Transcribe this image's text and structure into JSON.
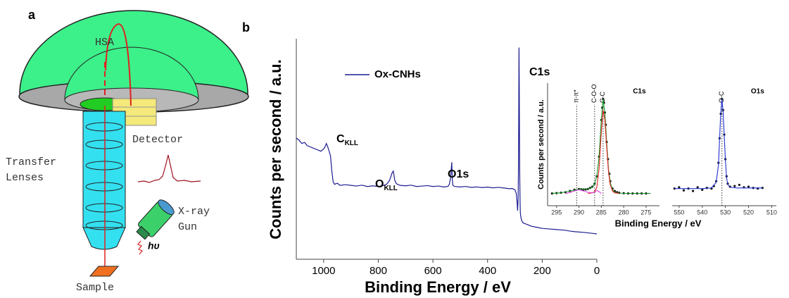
{
  "panel_labels": [
    "a",
    "b"
  ],
  "diagram": {
    "labels": {
      "hsa": "HSA",
      "detector": "Detector",
      "transfer_lenses": [
        "Transfer",
        "Lenses"
      ],
      "xray_gun": [
        "X-ray",
        "Gun"
      ],
      "photon": "hυ",
      "sample": "Sample"
    }
  },
  "chart_data": [
    {
      "type": "line",
      "xlabel": "Binding Energy / eV",
      "ylabel": "Counts per second / a.u.",
      "x": [
        1100,
        1090,
        1080,
        1070,
        1060,
        1050,
        1040,
        1030,
        1020,
        1010,
        1000,
        995,
        990,
        985,
        980,
        975,
        970,
        965,
        960,
        950,
        940,
        920,
        900,
        880,
        860,
        840,
        820,
        800,
        780,
        770,
        760,
        755,
        750,
        745,
        740,
        735,
        730,
        720,
        700,
        680,
        660,
        640,
        620,
        600,
        580,
        560,
        545,
        540,
        535,
        533,
        531,
        529,
        527,
        520,
        500,
        480,
        460,
        440,
        420,
        400,
        380,
        360,
        340,
        320,
        310,
        300,
        295,
        292,
        290,
        288,
        287,
        286,
        285,
        284,
        283,
        282,
        281,
        280,
        278,
        275,
        270,
        260,
        250,
        240,
        220,
        200,
        180,
        150,
        120,
        100,
        80,
        50,
        20,
        0
      ],
      "series": [
        {
          "name": "Ox-CNHs",
          "color": "#1c1c92",
          "values": [
            55,
            54,
            52.5,
            53,
            51.5,
            51,
            50.5,
            50,
            49.5,
            49,
            50,
            51,
            52.5,
            51,
            49,
            47,
            40,
            35,
            34,
            34.5,
            33.5,
            33.8,
            33.5,
            33.2,
            33.6,
            33,
            33.3,
            33,
            33.5,
            34,
            35.5,
            37,
            39,
            40,
            36,
            34.5,
            34,
            33.5,
            33.3,
            33.6,
            33,
            33.2,
            33.4,
            33,
            33.2,
            32.8,
            33,
            34,
            37,
            41,
            44,
            36,
            33.5,
            33,
            32.8,
            33,
            32.6,
            32.8,
            32.5,
            32.7,
            32.4,
            32.6,
            32.3,
            32,
            32.1,
            31.5,
            30,
            26,
            22,
            28,
            40,
            62,
            96,
            78,
            52,
            35,
            26,
            21,
            19,
            17.5,
            16.5,
            16,
            15.5,
            15,
            14.5,
            14,
            13.8,
            13.5,
            13.2,
            12.8,
            12.5,
            12.2,
            11.8,
            11.5
          ]
        }
      ],
      "xlim": [
        1100,
        0
      ],
      "ylim": [
        0,
        100
      ],
      "xticks": [
        1000,
        800,
        600,
        400,
        200,
        0
      ],
      "legend": "upper left",
      "annotations": [
        {
          "text": "C1s"
        },
        {
          "text": "C",
          "subscript": "KLL"
        },
        {
          "text": "O",
          "subscript": "KLL"
        },
        {
          "text": "O1s"
        }
      ]
    },
    {
      "type": "line",
      "title": "C1s",
      "xlabel": "Binding Energy / eV",
      "ylabel": "Counts per second / a.u.",
      "xlim": [
        297,
        272
      ],
      "ylim": [
        0,
        100
      ],
      "xticks": [
        295,
        290,
        285,
        280,
        275
      ],
      "reference_lines": [
        {
          "x": 290.5,
          "label": "π-π*"
        },
        {
          "x": 286.5,
          "label": "C-O-O"
        },
        {
          "x": 284.6,
          "label": "C-C"
        }
      ],
      "series": [
        {
          "color": "#111111",
          "marker": "dot",
          "x": [
            296,
            295,
            294,
            293,
            292,
            291,
            290,
            289.5,
            289,
            288.5,
            288,
            287.5,
            287,
            286.5,
            286,
            285.5,
            285,
            284.8,
            284.6,
            284.4,
            284.2,
            284,
            283.8,
            283.5,
            283.2,
            283,
            282.5,
            282,
            281.5,
            281,
            280,
            279,
            278,
            277,
            276,
            275
          ],
          "values": [
            10,
            10.3,
            10.6,
            11,
            12,
            13,
            13.6,
            13.4,
            13.2,
            13.3,
            13.6,
            14.5,
            15.5,
            18,
            24,
            40,
            70,
            80,
            87,
            84,
            76,
            66,
            52,
            38,
            26,
            20,
            14,
            12,
            11,
            10.5,
            10.2,
            10,
            10,
            10,
            10,
            10
          ]
        },
        {
          "color": "#1a9a2a",
          "x": [
            296,
            294,
            292,
            290,
            288,
            287,
            286.5,
            286,
            285.5,
            285,
            284.6,
            284.2,
            283.8,
            283.4,
            283,
            282.5,
            282,
            281,
            279,
            276,
            274
          ],
          "values": [
            10,
            10.5,
            12,
            13.5,
            13.5,
            15,
            18,
            24,
            40,
            70,
            87,
            76,
            52,
            30,
            19,
            13,
            11,
            10.2,
            10,
            10,
            10
          ]
        },
        {
          "color": "#e02020",
          "x": [
            288,
            287,
            286.5,
            286,
            285.5,
            285,
            284.6,
            284.2,
            283.8,
            283.4,
            283,
            282.5,
            282,
            281
          ],
          "values": [
            10,
            10.5,
            11.5,
            15,
            30,
            60,
            78,
            70,
            48,
            28,
            17,
            12,
            10.5,
            10
          ]
        },
        {
          "color": "#e040e0",
          "x": [
            293,
            292,
            291,
            290.5,
            290,
            289.5,
            289,
            288,
            287,
            286.5,
            286,
            285.5,
            285
          ],
          "values": [
            10,
            10.8,
            12,
            12.6,
            13,
            12.6,
            12,
            11,
            10.5,
            11,
            12.5,
            11.5,
            10
          ]
        }
      ]
    },
    {
      "type": "line",
      "title": "O1s",
      "xlim": [
        553,
        508
      ],
      "ylim": [
        0,
        100
      ],
      "xticks": [
        550,
        540,
        530,
        520,
        510
      ],
      "reference_lines": [
        {
          "x": 531.5,
          "label": "O-C"
        }
      ],
      "series": [
        {
          "color": "#111111",
          "marker": "dot",
          "x": [
            552,
            550,
            548,
            546,
            544,
            542,
            540,
            538,
            536,
            535,
            534,
            533,
            532.5,
            532,
            531.5,
            531,
            530.5,
            530,
            529.5,
            529,
            528,
            526,
            524,
            522,
            520,
            518,
            516,
            514
          ],
          "values": [
            14,
            15,
            12.5,
            14,
            12,
            15,
            13,
            14.5,
            14,
            16,
            20,
            35,
            55,
            75,
            87,
            78,
            58,
            38,
            24,
            18,
            15.5,
            16,
            17,
            15,
            15.5,
            14.5,
            14,
            14.5
          ]
        },
        {
          "color": "#2030d0",
          "x": [
            552,
            545,
            540,
            536,
            534,
            533,
            532.5,
            532,
            531.5,
            531,
            530.5,
            530,
            529.5,
            529,
            528,
            525,
            520,
            514
          ],
          "values": [
            14,
            14,
            14,
            14.5,
            19,
            33,
            55,
            76,
            87,
            77,
            57,
            37,
            23,
            17.5,
            15,
            14.5,
            14.5,
            14.5
          ]
        }
      ]
    }
  ]
}
